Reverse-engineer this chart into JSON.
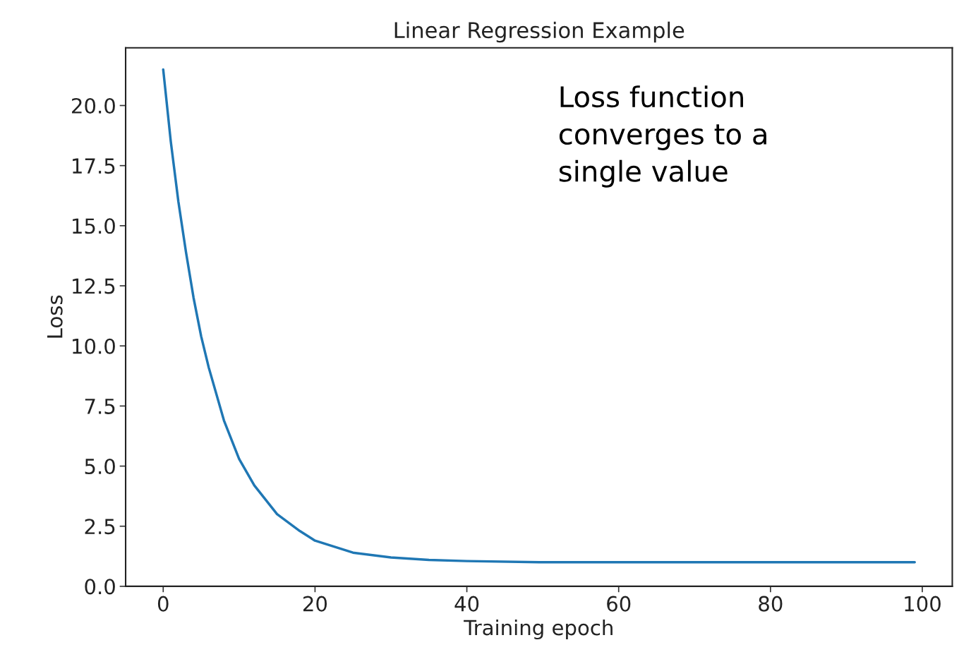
{
  "chart_data": {
    "type": "line",
    "title": "Linear Regression Example",
    "xlabel": "Training epoch",
    "ylabel": "Loss",
    "annotations": [
      "Loss function\nconverges to a\nsingle value"
    ],
    "series": [
      {
        "color": "#1f77b4",
        "x": [
          0,
          1,
          2,
          3,
          4,
          5,
          6,
          8,
          10,
          12,
          15,
          18,
          20,
          25,
          30,
          35,
          40,
          50,
          60,
          70,
          80,
          90,
          99
        ],
        "values": [
          21.5,
          18.5,
          16.0,
          13.9,
          12.0,
          10.4,
          9.1,
          6.9,
          5.3,
          4.2,
          3.0,
          2.3,
          1.9,
          1.4,
          1.2,
          1.1,
          1.05,
          1.0,
          1.0,
          1.0,
          1.0,
          1.0,
          1.0
        ]
      }
    ],
    "xlim": [
      -4.95,
      103.95
    ],
    "ylim": [
      0,
      22.4
    ],
    "xticks": [
      0,
      20,
      40,
      60,
      80,
      100
    ],
    "yticks": [
      {
        "value": 0,
        "label": "0.0"
      },
      {
        "value": 2.5,
        "label": "2.5"
      },
      {
        "value": 5,
        "label": "5.0"
      },
      {
        "value": 7.5,
        "label": "7.5"
      },
      {
        "value": 10,
        "label": "10.0"
      },
      {
        "value": 12.5,
        "label": "12.5"
      },
      {
        "value": 15,
        "label": "15.0"
      },
      {
        "value": 17.5,
        "label": "17.5"
      },
      {
        "value": 20,
        "label": "20.0"
      }
    ],
    "grid": false,
    "legend": false,
    "marker": "none",
    "line_style": "solid"
  }
}
